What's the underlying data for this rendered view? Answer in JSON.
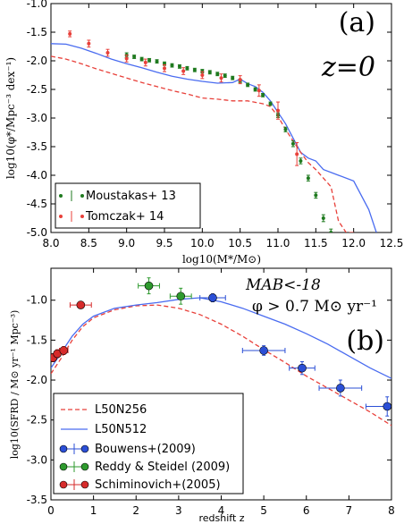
{
  "chart_data": [
    {
      "type": "line",
      "panel_label": "(a)",
      "annotation": "z=0",
      "xlabel": "log10(M*/M⊙)",
      "ylabel": "log10(φ*/Mpc⁻³ dex⁻¹)",
      "xlim": [
        8.0,
        12.5
      ],
      "ylim": [
        -5.0,
        -1.0
      ],
      "xticks": [
        "8.0",
        "8.5",
        "9.0",
        "9.5",
        "10.0",
        "10.5",
        "11.0",
        "11.5",
        "12.0",
        "12.5"
      ],
      "yticks": [
        "-1.0",
        "-1.5",
        "-2.0",
        "-2.5",
        "-3.0",
        "-3.5",
        "-4.0",
        "-4.5",
        "-5.0"
      ],
      "legend_position": "bottom-left",
      "series": [
        {
          "kind": "line",
          "style": "solid",
          "color": "#4a6cf0",
          "x": [
            8.0,
            8.2,
            8.4,
            8.6,
            8.8,
            9.0,
            9.2,
            9.4,
            9.6,
            9.8,
            10.0,
            10.2,
            10.4,
            10.5,
            10.6,
            10.7,
            10.8,
            10.9,
            11.0,
            11.1,
            11.2,
            11.3,
            11.4,
            11.5,
            11.6,
            11.8,
            12.0,
            12.2,
            12.3
          ],
          "y": [
            -1.7,
            -1.71,
            -1.78,
            -1.87,
            -1.97,
            -2.05,
            -2.12,
            -2.2,
            -2.27,
            -2.32,
            -2.36,
            -2.39,
            -2.38,
            -2.32,
            -2.4,
            -2.45,
            -2.55,
            -2.7,
            -2.9,
            -3.1,
            -3.35,
            -3.6,
            -3.7,
            -3.75,
            -3.9,
            -4.0,
            -4.1,
            -4.6,
            -5.0
          ]
        },
        {
          "kind": "line",
          "style": "dashed",
          "color": "#e8403a",
          "x": [
            8.0,
            8.2,
            8.4,
            8.6,
            8.8,
            9.0,
            9.2,
            9.4,
            9.6,
            9.8,
            10.0,
            10.2,
            10.4,
            10.6,
            10.8,
            10.9,
            11.0,
            11.1,
            11.2,
            11.3,
            11.4,
            11.5,
            11.6,
            11.7,
            11.8,
            11.9,
            12.0
          ],
          "y": [
            -1.92,
            -1.97,
            -2.05,
            -2.14,
            -2.22,
            -2.3,
            -2.38,
            -2.45,
            -2.52,
            -2.58,
            -2.65,
            -2.67,
            -2.7,
            -2.7,
            -2.75,
            -2.8,
            -2.97,
            -3.2,
            -3.4,
            -3.6,
            -3.78,
            -3.9,
            -4.05,
            -4.2,
            -4.8,
            -5.0,
            -5.0
          ]
        },
        {
          "kind": "errorbar",
          "name": "Moustakas+ 13",
          "color": "#1f7a1f",
          "x": [
            9.0,
            9.1,
            9.2,
            9.3,
            9.4,
            9.5,
            9.6,
            9.7,
            9.8,
            9.9,
            10.0,
            10.1,
            10.2,
            10.3,
            10.4,
            10.5,
            10.6,
            10.7,
            10.8,
            10.9,
            11.0,
            11.1,
            11.2,
            11.3,
            11.4,
            11.5,
            11.6,
            11.7
          ],
          "y": [
            -1.9,
            -1.93,
            -1.97,
            -1.99,
            -2.01,
            -2.05,
            -2.08,
            -2.1,
            -2.13,
            -2.16,
            -2.18,
            -2.2,
            -2.23,
            -2.26,
            -2.3,
            -2.35,
            -2.42,
            -2.5,
            -2.6,
            -2.75,
            -2.95,
            -3.2,
            -3.45,
            -3.75,
            -4.05,
            -4.35,
            -4.75,
            -5.0
          ],
          "yerr": [
            0.04,
            0.03,
            0.03,
            0.03,
            0.03,
            0.03,
            0.03,
            0.03,
            0.03,
            0.03,
            0.03,
            0.03,
            0.03,
            0.03,
            0.03,
            0.03,
            0.03,
            0.03,
            0.03,
            0.03,
            0.04,
            0.04,
            0.05,
            0.05,
            0.05,
            0.05,
            0.06,
            0.06
          ]
        },
        {
          "kind": "errorbar",
          "name": "Tomczak+ 14",
          "color": "#e8403a",
          "x": [
            8.25,
            8.5,
            8.75,
            9.0,
            9.25,
            9.5,
            9.75,
            10.0,
            10.25,
            10.5,
            10.75,
            11.0,
            11.25
          ],
          "y": [
            -1.53,
            -1.7,
            -1.86,
            -1.96,
            -2.03,
            -2.13,
            -2.18,
            -2.25,
            -2.3,
            -2.33,
            -2.52,
            -2.87,
            -3.63
          ],
          "yerr": [
            0.05,
            0.06,
            0.06,
            0.06,
            0.06,
            0.06,
            0.06,
            0.06,
            0.07,
            0.07,
            0.1,
            0.15,
            0.2
          ]
        }
      ]
    },
    {
      "type": "line",
      "panel_label": "(b)",
      "annotation_lines": [
        "MAB<-18",
        "φ > 0.7 M⊙ yr⁻¹"
      ],
      "xlabel": "redshift z",
      "ylabel": "log10(SFRD / M⊙ yr⁻¹ Mpc⁻³)",
      "xlim": [
        0,
        8
      ],
      "ylim": [
        -3.5,
        -0.6
      ],
      "xticks": [
        "0",
        "1",
        "2",
        "3",
        "4",
        "5",
        "6",
        "7",
        "8"
      ],
      "yticks": [
        "-1.0",
        "-1.5",
        "-2.0",
        "-2.5",
        "-3.0",
        "-3.5"
      ],
      "legend_position": "bottom-left",
      "series": [
        {
          "kind": "line",
          "name": "L50N256",
          "style": "dashed",
          "color": "#e8403a",
          "x": [
            0,
            0.25,
            0.5,
            0.75,
            1.0,
            1.5,
            2.0,
            2.5,
            3.0,
            3.5,
            4.0,
            4.5,
            5.0,
            5.5,
            6.0,
            6.5,
            7.0,
            7.5,
            8.0
          ],
          "y": [
            -1.92,
            -1.72,
            -1.5,
            -1.33,
            -1.22,
            -1.12,
            -1.07,
            -1.06,
            -1.1,
            -1.18,
            -1.3,
            -1.45,
            -1.62,
            -1.78,
            -1.95,
            -2.1,
            -2.25,
            -2.4,
            -2.57
          ]
        },
        {
          "kind": "line",
          "name": "L50N512",
          "style": "solid",
          "color": "#4a6cf0",
          "x": [
            0,
            0.25,
            0.5,
            0.75,
            1.0,
            1.5,
            2.0,
            2.5,
            3.0,
            3.5,
            4.0,
            4.5,
            5.0,
            5.5,
            6.0,
            6.5,
            7.0,
            7.5,
            8.0
          ],
          "y": [
            -1.85,
            -1.65,
            -1.45,
            -1.3,
            -1.2,
            -1.1,
            -1.06,
            -1.03,
            -0.99,
            -0.97,
            -1.02,
            -1.1,
            -1.2,
            -1.3,
            -1.42,
            -1.55,
            -1.7,
            -1.85,
            -1.98
          ]
        },
        {
          "kind": "errorbar",
          "name": "Bouwens+(2009)",
          "color": "#2b4fd6",
          "x": [
            3.8,
            5.0,
            5.9,
            6.8,
            7.9
          ],
          "y": [
            -0.97,
            -1.63,
            -1.85,
            -2.1,
            -2.33
          ],
          "xerr": [
            0.3,
            0.5,
            0.3,
            0.5,
            0.5
          ],
          "yerr": [
            0.05,
            0.06,
            0.08,
            0.1,
            0.12
          ]
        },
        {
          "kind": "errorbar",
          "name": "Reddy & Steidel (2009)",
          "color": "#2e9a2e",
          "x": [
            2.3,
            3.05
          ],
          "y": [
            -0.82,
            -0.95
          ],
          "xerr": [
            0.25,
            0.25
          ],
          "yerr": [
            0.1,
            0.1
          ]
        },
        {
          "kind": "errorbar",
          "name": "Schiminovich+(2005)",
          "color": "#d62b2b",
          "x": [
            0.05,
            0.15,
            0.3,
            0.7
          ],
          "y": [
            -1.72,
            -1.67,
            -1.63,
            -1.06
          ],
          "xerr": [
            0.05,
            0.05,
            0.1,
            0.25
          ],
          "yerr": [
            0.05,
            0.05,
            0.05,
            0.04
          ]
        }
      ]
    }
  ]
}
